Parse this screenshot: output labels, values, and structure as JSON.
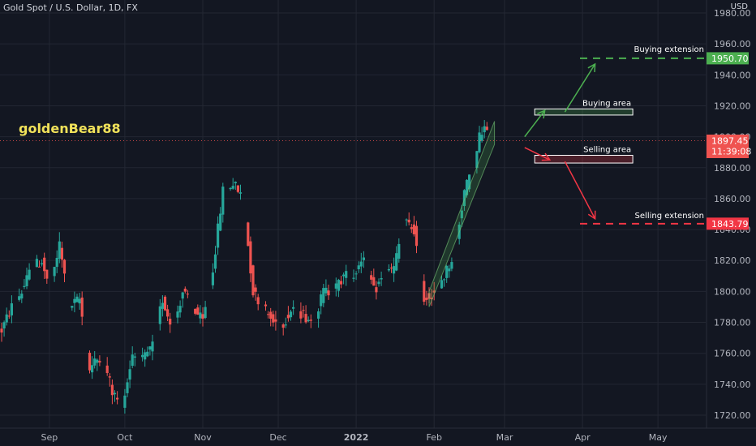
{
  "header": {
    "symbol_title": "Gold Spot / U.S. Dollar, 1D, FX",
    "currency": "USD",
    "author": "goldenBear88"
  },
  "colors": {
    "background": "#131722",
    "grid": "#232733",
    "up": "#26a69a",
    "down": "#ef5350",
    "text": "#b2b5be",
    "buy": "#4caf50",
    "sell": "#f23645",
    "price_line": "#ef5350"
  },
  "chart_data": {
    "type": "candlestick",
    "ylim": [
      1712,
      1992
    ],
    "y_ticks": [
      1720,
      1740,
      1760,
      1780,
      1800,
      1820,
      1840,
      1860,
      1880,
      1900,
      1920,
      1940,
      1960,
      1980
    ],
    "x_labels": [
      {
        "label": "Sep",
        "day": 19
      },
      {
        "label": "Oct",
        "day": 49
      },
      {
        "label": "Nov",
        "day": 80
      },
      {
        "label": "Dec",
        "day": 110
      },
      {
        "label": "2022",
        "day": 141
      },
      {
        "label": "Feb",
        "day": 172
      },
      {
        "label": "Mar",
        "day": 200
      },
      {
        "label": "Apr",
        "day": 231
      },
      {
        "label": "May",
        "day": 261
      }
    ],
    "anchors": [
      [
        0,
        1775
      ],
      [
        4,
        1790
      ],
      [
        8,
        1800
      ],
      [
        12,
        1815
      ],
      [
        16,
        1820
      ],
      [
        19,
        1800
      ],
      [
        23,
        1830
      ],
      [
        27,
        1790
      ],
      [
        31,
        1795
      ],
      [
        35,
        1750
      ],
      [
        40,
        1760
      ],
      [
        44,
        1735
      ],
      [
        48,
        1725
      ],
      [
        52,
        1760
      ],
      [
        56,
        1755
      ],
      [
        60,
        1765
      ],
      [
        64,
        1795
      ],
      [
        68,
        1775
      ],
      [
        72,
        1800
      ],
      [
        76,
        1790
      ],
      [
        80,
        1780
      ],
      [
        84,
        1815
      ],
      [
        88,
        1865
      ],
      [
        92,
        1870
      ],
      [
        96,
        1860
      ],
      [
        100,
        1800
      ],
      [
        104,
        1790
      ],
      [
        108,
        1780
      ],
      [
        112,
        1780
      ],
      [
        116,
        1790
      ],
      [
        120,
        1785
      ],
      [
        124,
        1780
      ],
      [
        128,
        1800
      ],
      [
        132,
        1800
      ],
      [
        136,
        1810
      ],
      [
        140,
        1810
      ],
      [
        144,
        1825
      ],
      [
        148,
        1800
      ],
      [
        152,
        1810
      ],
      [
        156,
        1815
      ],
      [
        160,
        1845
      ],
      [
        164,
        1840
      ],
      [
        166,
        1815
      ],
      [
        168,
        1795
      ],
      [
        172,
        1800
      ],
      [
        176,
        1810
      ],
      [
        180,
        1825
      ],
      [
        184,
        1865
      ],
      [
        188,
        1880
      ],
      [
        190,
        1900
      ],
      [
        192,
        1905
      ],
      [
        194,
        1897.45
      ]
    ],
    "price_levels": {
      "current": {
        "value": 1897.45,
        "label": "1897.45",
        "countdown": "11:39:08"
      },
      "buying_extension": {
        "value": 1950.7,
        "label": "1950.70"
      },
      "selling_extension": {
        "value": 1843.79,
        "label": "1843.79"
      }
    },
    "zones": {
      "buying_area": {
        "low": 1914,
        "high": 1918,
        "start_day": 212,
        "end_day": 251
      },
      "selling_area": {
        "low": 1883,
        "high": 1888,
        "start_day": 212,
        "end_day": 251
      }
    },
    "annotations": {
      "buying_area": "Buying area",
      "selling_area": "Selling area",
      "buying_extension": "Buying extension",
      "selling_extension": "Selling extension"
    },
    "channel": {
      "start_day": 170,
      "end_day": 196,
      "bottom_start": 1790,
      "bottom_end": 1895,
      "top_start": 1800,
      "top_end": 1910
    }
  }
}
